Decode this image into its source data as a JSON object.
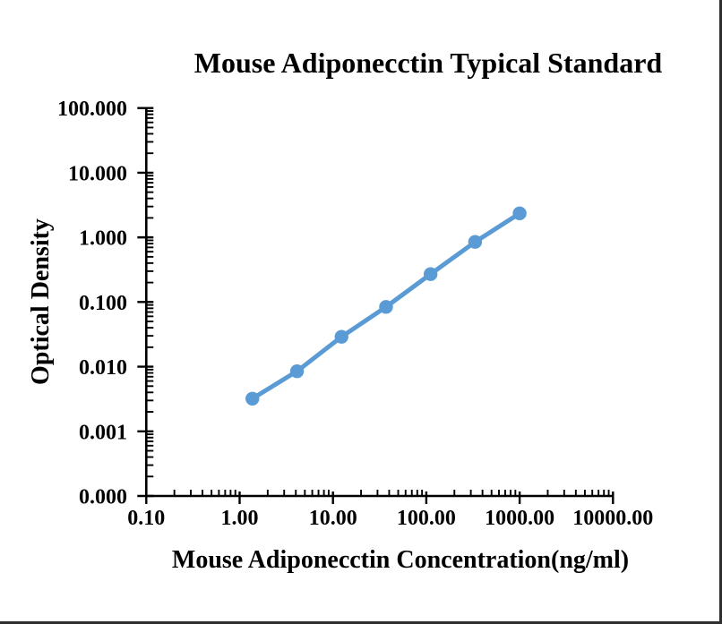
{
  "page": {
    "background_color": "#ffffff",
    "frame_border_color": "#2e2e2e"
  },
  "chart_data": {
    "type": "line",
    "title": "Mouse Adiponecctin Typical Standard",
    "xlabel": "Mouse Adiponecctin Concentration(ng/ml)",
    "ylabel": "Optical Density",
    "x_scale": "log",
    "y_scale": "log",
    "xlim": [
      0.1,
      10000
    ],
    "ylim": [
      0.0001,
      100
    ],
    "grid": false,
    "legend_position": "none",
    "x_tick_values": [
      0.1,
      1,
      10,
      100,
      1000,
      10000
    ],
    "x_tick_labels": [
      "0.10",
      "1.00",
      "10.00",
      "100.00",
      "1000.00",
      "10000.00"
    ],
    "y_tick_values": [
      100,
      10,
      1,
      0.1,
      0.01,
      0.001,
      0.0001
    ],
    "y_tick_labels": [
      "100.000",
      "10.000",
      "1.000",
      "0.100",
      "0.010",
      "0.001",
      "0.000"
    ],
    "axis_color": "#000000",
    "series": [
      {
        "name": "Typical Standard",
        "color": "#5B9BD5",
        "marker": "circle",
        "points": [
          {
            "x": 1.37,
            "y": 0.0032
          },
          {
            "x": 4.12,
            "y": 0.0085
          },
          {
            "x": 12.35,
            "y": 0.029
          },
          {
            "x": 37.04,
            "y": 0.084
          },
          {
            "x": 111.11,
            "y": 0.27
          },
          {
            "x": 333.33,
            "y": 0.85
          },
          {
            "x": 1000,
            "y": 2.35
          }
        ]
      }
    ]
  }
}
